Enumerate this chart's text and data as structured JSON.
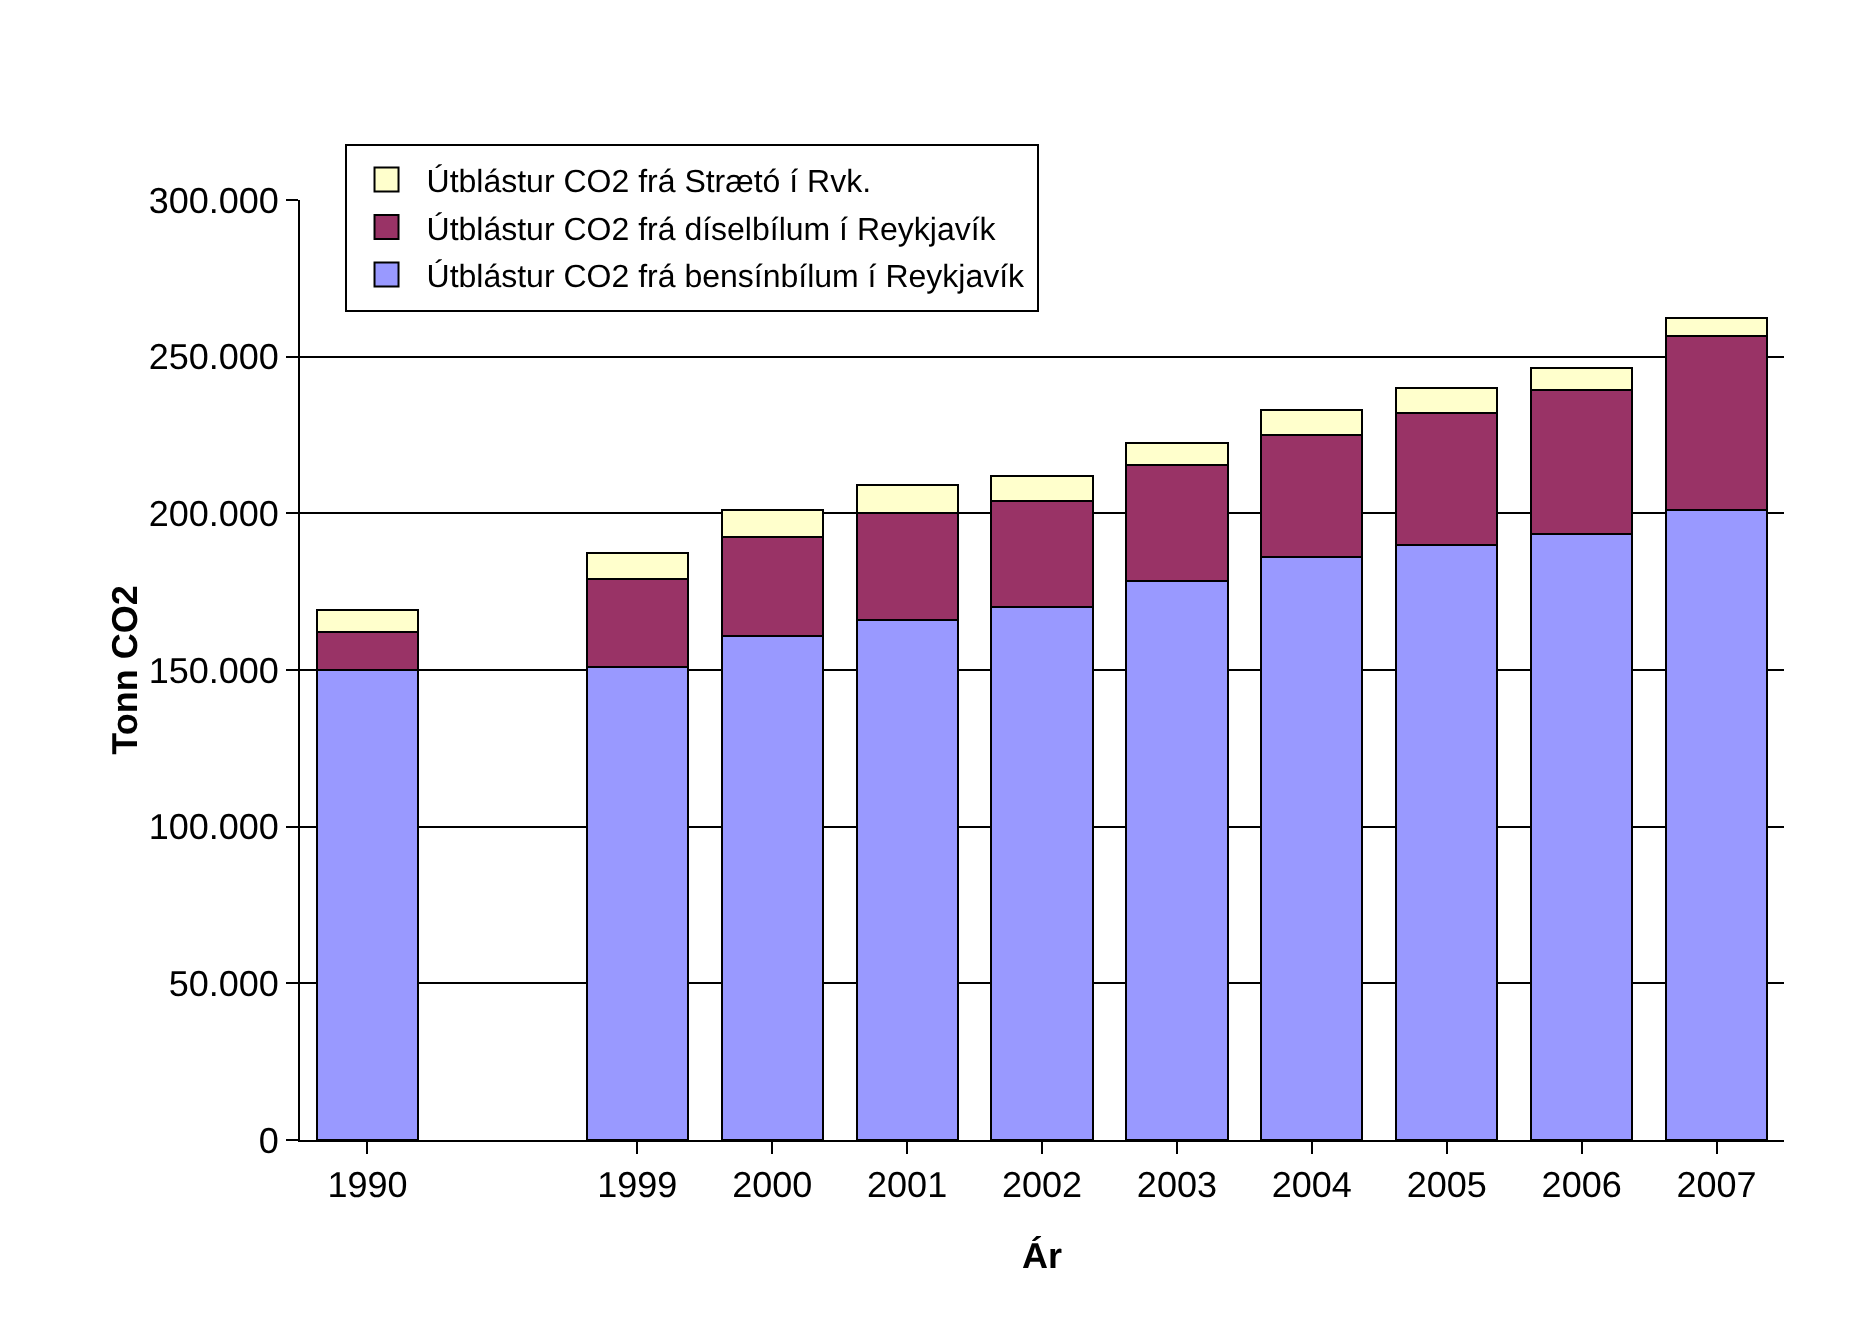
{
  "chart_data": {
    "type": "bar",
    "stacked": true,
    "xlabel": "Ár",
    "ylabel": "Tonn CO2",
    "categories": [
      "1990",
      null,
      "1999",
      "2000",
      "2001",
      "2002",
      "2003",
      "2004",
      "2005",
      "2006",
      "2007"
    ],
    "series": [
      {
        "name": "Útblástur CO2 frá bensínbílum í Reykjavík",
        "color": "#9999ff",
        "values": [
          150000,
          null,
          151000,
          161000,
          166000,
          170000,
          178500,
          186000,
          190000,
          193500,
          201000
        ]
      },
      {
        "name": "Útblástur CO2 frá díselbílum í Reykjavík",
        "color": "#993366",
        "values": [
          12000,
          null,
          28000,
          31500,
          34000,
          34000,
          37000,
          39000,
          42000,
          46000,
          55500
        ]
      },
      {
        "name": "Útblástur CO2 frá Strætó í Rvk.",
        "color": "#ffffcc",
        "values": [
          7000,
          null,
          8500,
          8500,
          9000,
          8000,
          7000,
          8000,
          8000,
          7000,
          6000
        ]
      }
    ],
    "ylim": [
      0,
      300000
    ],
    "yticks": [
      0,
      {
        "value": 50000,
        "label": "50.000"
      },
      {
        "value": 100000,
        "label": "100.000"
      },
      {
        "value": 150000,
        "label": "150.000"
      },
      {
        "value": 200000,
        "label": "200.000"
      },
      {
        "value": 250000,
        "label": "250.000"
      },
      {
        "value": 300000,
        "label": "300.000"
      }
    ],
    "grid": "y",
    "legend": "top left"
  }
}
